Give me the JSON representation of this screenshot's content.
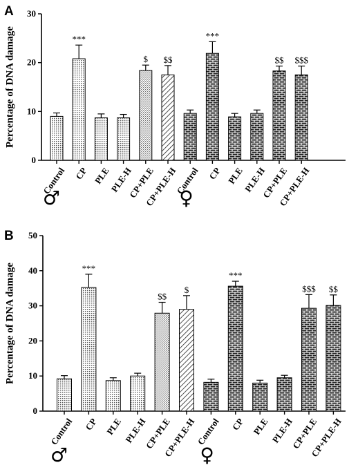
{
  "chart_data": [
    {
      "type": "bar",
      "panel": "A",
      "ylabel": "Percentage of DNA damage",
      "ylim": [
        0,
        30
      ],
      "yticks": [
        0,
        10,
        20,
        30
      ],
      "categories": [
        "Control",
        "CP",
        "PLE",
        "PLE-H",
        "CP+PLE",
        "CP+PLE-H",
        "Control",
        "CP",
        "PLE",
        "PLE-H",
        "CP+PLE",
        "CP+PLE-H"
      ],
      "groups": [
        {
          "symbol": "♂",
          "categories": [
            "Control",
            "CP",
            "PLE",
            "PLE-H",
            "CP+PLE",
            "CP+PLE-H"
          ]
        },
        {
          "symbol": "♀",
          "categories": [
            "Control",
            "CP",
            "PLE",
            "PLE-H",
            "CP+PLE",
            "CP+PLE-H"
          ]
        }
      ],
      "values": [
        9.0,
        20.8,
        8.7,
        8.7,
        18.4,
        17.5,
        9.6,
        21.9,
        8.9,
        9.6,
        18.3,
        17.5
      ],
      "errors": [
        0.7,
        2.8,
        0.8,
        0.7,
        1.1,
        1.9,
        0.7,
        2.4,
        0.7,
        0.7,
        1.0,
        1.8
      ],
      "significance": [
        "",
        "***",
        "",
        "",
        "$",
        "$$",
        "",
        "***",
        "",
        "",
        "$$",
        "$$$"
      ]
    },
    {
      "type": "bar",
      "panel": "B",
      "ylabel": "Percentage of DNA damage",
      "ylim": [
        0,
        50
      ],
      "yticks": [
        0,
        10,
        20,
        30,
        40,
        50
      ],
      "categories": [
        "Control",
        "CP",
        "PLE",
        "PLE-H",
        "CP+PLE",
        "CP+PLE-H",
        "Control",
        "CP",
        "PLE",
        "PLE-H",
        "CP+PLE",
        "CP+PLE-H"
      ],
      "groups": [
        {
          "symbol": "♂",
          "categories": [
            "Control",
            "CP",
            "PLE",
            "PLE-H",
            "CP+PLE",
            "CP+PLE-H"
          ]
        },
        {
          "symbol": "♀",
          "categories": [
            "Control",
            "CP",
            "PLE",
            "PLE-H",
            "CP+PLE",
            "CP+PLE-H"
          ]
        }
      ],
      "values": [
        9.2,
        35.2,
        8.7,
        10.0,
        27.9,
        29.0,
        8.2,
        35.6,
        8.0,
        9.5,
        29.3,
        30.1
      ],
      "errors": [
        0.9,
        3.8,
        0.8,
        0.8,
        3.1,
        3.9,
        0.9,
        1.4,
        0.8,
        0.7,
        3.9,
        3.0
      ],
      "significance": [
        "",
        "***",
        "",
        "",
        "$$",
        "$",
        "",
        "***",
        "",
        "",
        "$$$",
        "$$"
      ]
    }
  ]
}
